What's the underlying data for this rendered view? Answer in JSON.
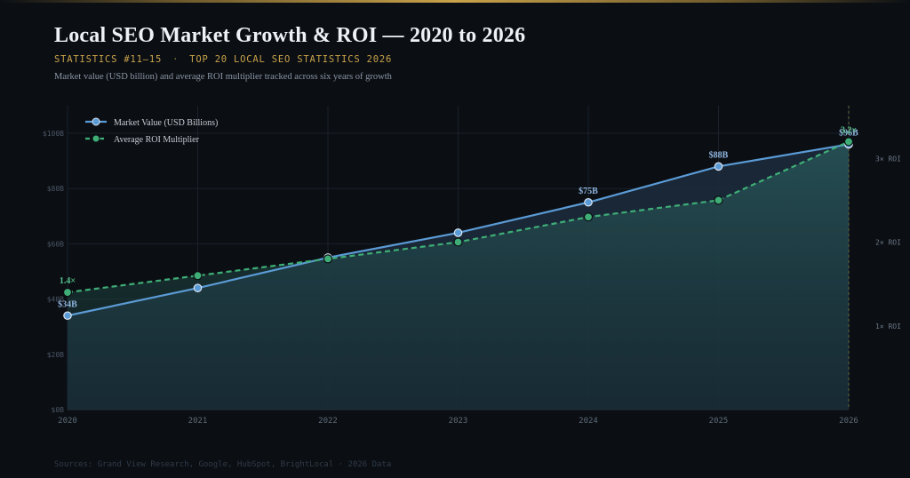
{
  "header": {
    "title": "Local SEO Market Growth & ROI — 2020 to 2026",
    "stat_tag": "STATISTICS #11–15",
    "stat_sep": "·",
    "section": "TOP 20 LOCAL SEO STATISTICS 2026",
    "description": "Market value (USD billion) and average ROI multiplier tracked across six years of growth"
  },
  "footer": {
    "sources": "Sources: Grand View Research, Google, HubSpot, BrightLocal · 2026 Data"
  },
  "colors": {
    "market": "#5b9bd5",
    "roi": "#3fae76",
    "accent": "#c9a24a"
  },
  "chart_data": {
    "type": "line",
    "x": [
      "2020",
      "2021",
      "2022",
      "2023",
      "2024",
      "2025",
      "2026"
    ],
    "y_left": {
      "lim": [
        0,
        100
      ],
      "ticks": [
        0,
        20,
        40,
        60,
        80,
        100
      ],
      "tick_labels": [
        "$0B",
        "$20B",
        "$40B",
        "$60B",
        "$80B",
        "$100B"
      ]
    },
    "y_right": {
      "lim": [
        0,
        3.3
      ],
      "ticks": [
        1,
        2,
        3
      ],
      "tick_labels": [
        "1× ROI",
        "2× ROI",
        "3× ROI"
      ]
    },
    "grid": true,
    "legend_position": "top-left",
    "series": [
      {
        "name": "Market Value (USD Billions)",
        "axis": "left",
        "style": "solid",
        "values": [
          34,
          44,
          55,
          64,
          75,
          88,
          96
        ],
        "labels": [
          "$34B",
          null,
          null,
          null,
          "$75B",
          "$88B",
          "$96B"
        ]
      },
      {
        "name": "Average ROI Multiplier",
        "axis": "right",
        "style": "dashed",
        "values": [
          1.4,
          1.6,
          1.8,
          2.0,
          2.3,
          2.5,
          3.2
        ],
        "labels": [
          "1.4×",
          null,
          null,
          null,
          null,
          null,
          "3.2×"
        ]
      }
    ]
  }
}
